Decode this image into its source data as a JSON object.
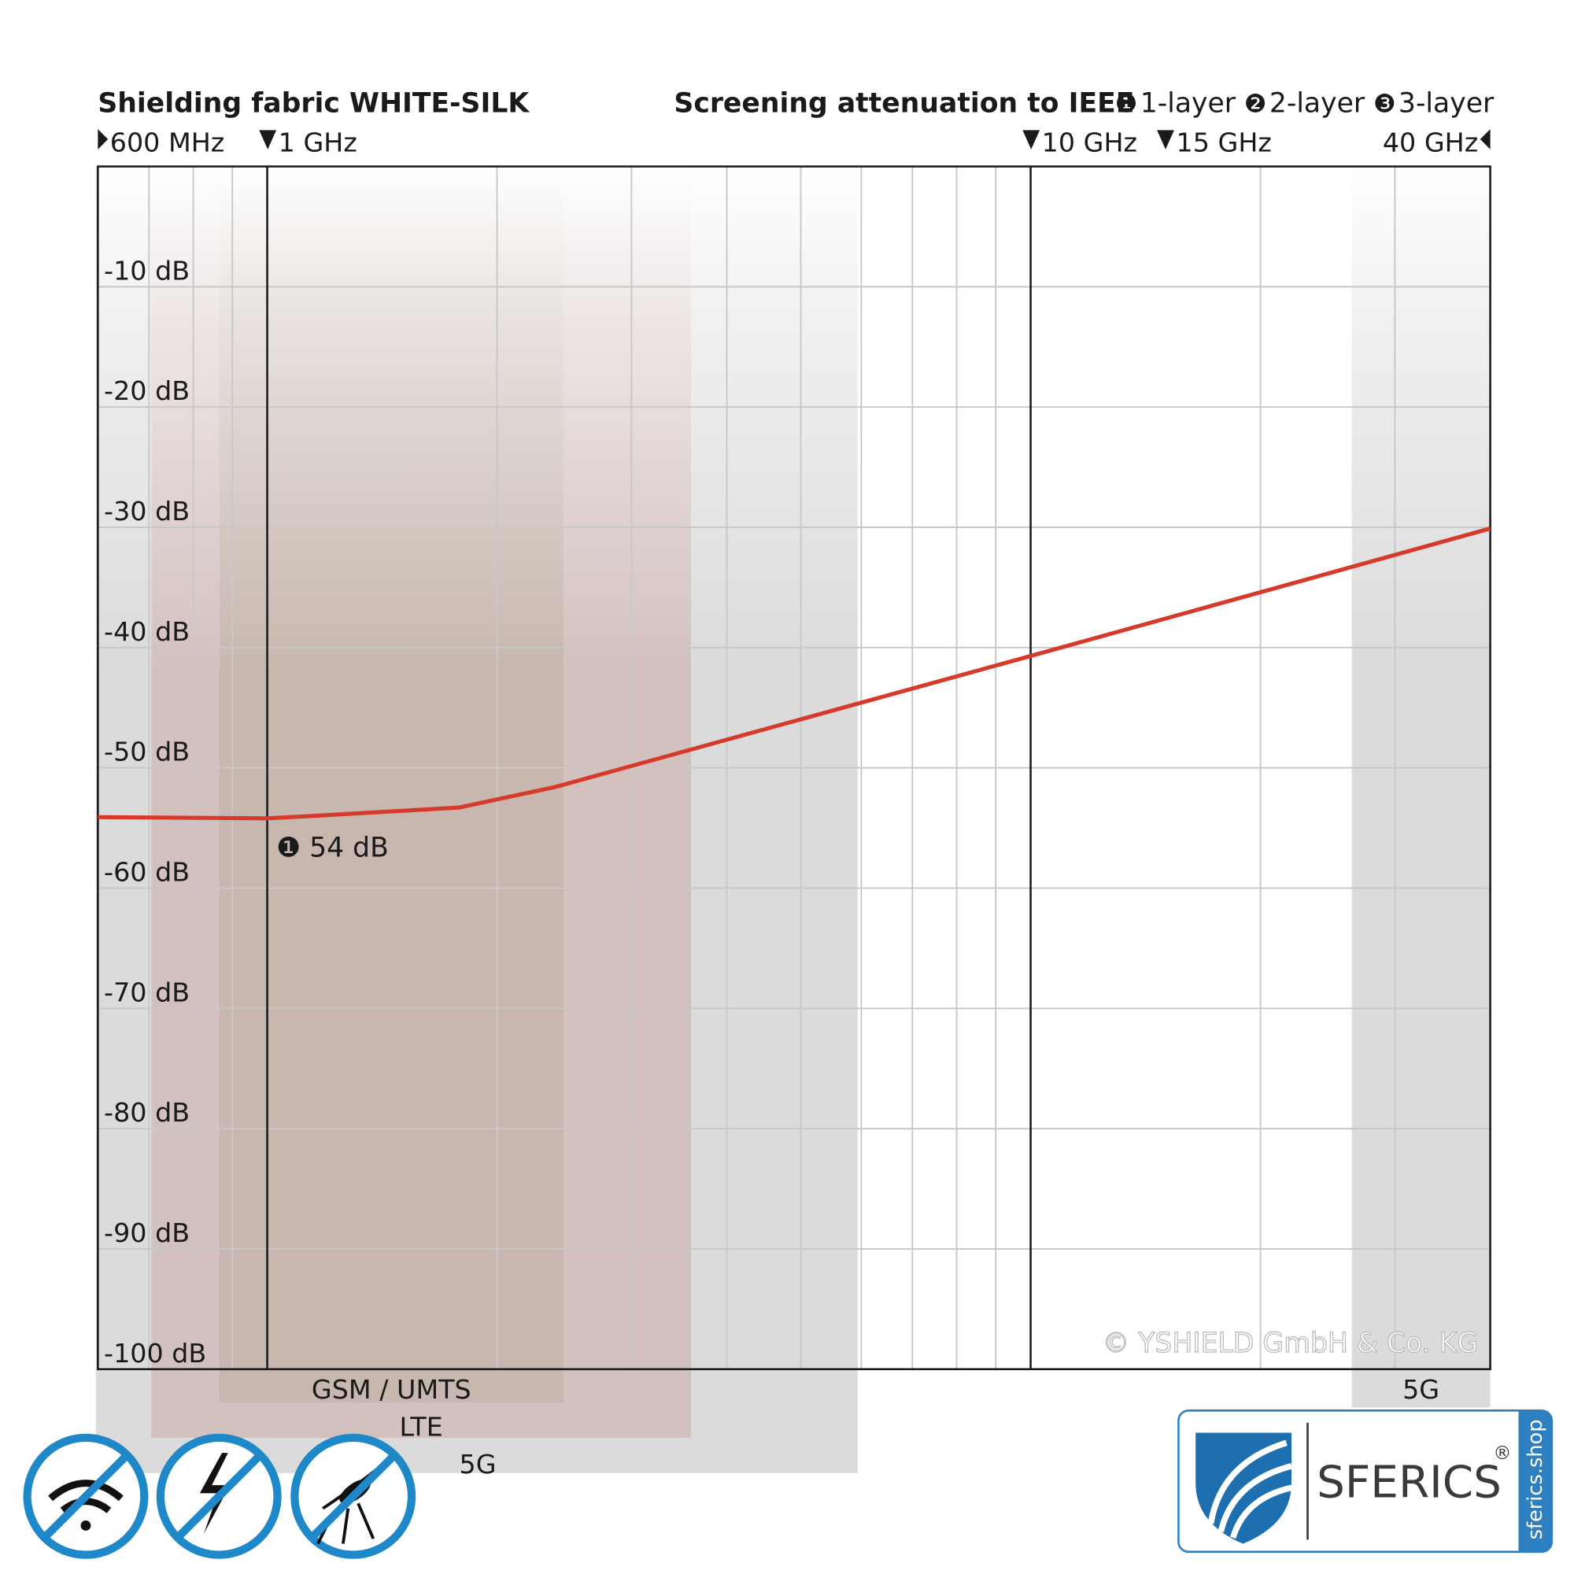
{
  "chart_data": {
    "type": "line",
    "title": "Shielding fabric WHITE-SILK",
    "subtitle": "Screening attenuation to IEEE",
    "legend": [
      {
        "marker": "❶",
        "label": "1-layer"
      },
      {
        "marker": "❷",
        "label": "2-layer"
      },
      {
        "marker": "❸",
        "label": "3-layer"
      }
    ],
    "x": [
      600,
      1000,
      1146,
      1783,
      2381,
      10000,
      40000
    ],
    "series": [
      {
        "name": "1-layer",
        "color": "#d63a2a",
        "values": [
          -54.1,
          -54.2,
          -54.0,
          -53.3,
          -51.6,
          -40.7,
          -30.1
        ]
      }
    ],
    "annotation": "❶ 54 dB",
    "xscale": "log",
    "xlim": [
      600,
      40000
    ],
    "xticks": [
      {
        "value": 600,
        "label": "600 MHz"
      },
      {
        "value": 1000,
        "label": "1 GHz"
      },
      {
        "value": 10000,
        "label": "10 GHz"
      },
      {
        "value": 15000,
        "label": "15 GHz"
      },
      {
        "value": 40000,
        "label": "40 GHz"
      }
    ],
    "xgrid": [
      700,
      800,
      900,
      1000,
      2000,
      3000,
      4000,
      5000,
      6000,
      7000,
      8000,
      9000,
      10000,
      20000,
      30000
    ],
    "xgrid_major": [
      1000,
      10000
    ],
    "ylim": [
      -100,
      0
    ],
    "yticks": [
      {
        "value": -10,
        "label": "-10 dB"
      },
      {
        "value": -20,
        "label": "-20 dB"
      },
      {
        "value": -30,
        "label": "-30 dB"
      },
      {
        "value": -40,
        "label": "-40 dB"
      },
      {
        "value": -50,
        "label": "-50 dB"
      },
      {
        "value": -60,
        "label": "-60 dB"
      },
      {
        "value": -70,
        "label": "-70 dB"
      },
      {
        "value": -80,
        "label": "-80 dB"
      },
      {
        "value": -90,
        "label": "-90 dB"
      },
      {
        "value": -100,
        "label": "-100 dB"
      }
    ],
    "grid": true,
    "bands": [
      {
        "label": "GSM / UMTS",
        "range": [
          866,
          2442
        ],
        "color": "#8fa866"
      },
      {
        "label": "LTE",
        "range": [
          705,
          3590
        ],
        "color": "#e0988e"
      },
      {
        "label": "5G",
        "range": [
          600,
          5935
        ],
        "color": "#bdbdbd"
      },
      {
        "label": "5G",
        "range": [
          26340,
          40000
        ],
        "color": "#bdbdbd"
      }
    ],
    "copyright": "© YSHIELD GmbH & Co. KG"
  },
  "logo": {
    "name": "SFERICS",
    "mark": "®",
    "url": "sferics.shop"
  }
}
